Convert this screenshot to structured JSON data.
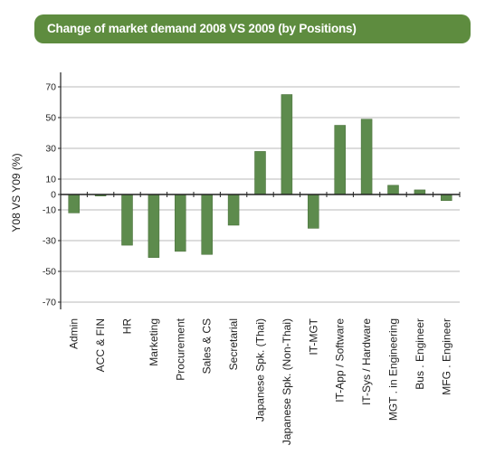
{
  "title": "Change of market demand 2008 VS 2009 (by Positions)",
  "colors": {
    "title_bg": "#5e8c3f",
    "bar": "#5d8b4d",
    "bar_outline": "#446b35",
    "axis": "#222222",
    "grid": "#b9b9b9"
  },
  "chart_data": {
    "type": "bar",
    "title": "Change of market demand 2008 VS 2009 (by Positions)",
    "ylabel": "Y08 VS Y09 (%)",
    "xlabel": "",
    "ylim": [
      -80,
      80
    ],
    "yticks": [
      70,
      50,
      30,
      10,
      0,
      -10,
      -30,
      -50,
      -70
    ],
    "grid": true,
    "legend": "none",
    "categories": [
      "Admin",
      "ACC & FIN",
      "HR",
      "Marketing",
      "Procurement",
      "Sales & CS",
      "Secretarial",
      "Japanese Spk. (Thai)",
      "Japanese Spk. (Non-Thai)",
      "IT-MGT",
      "IT-App / Software",
      "IT-Sys / Hardware",
      "MGT . in Engineering",
      "Bus . Engineer",
      "MFG . Engineer"
    ],
    "values": [
      -12,
      -1,
      -33,
      -41,
      -37,
      -39,
      -20,
      28,
      65,
      -22,
      45,
      49,
      6,
      3,
      -4
    ]
  }
}
